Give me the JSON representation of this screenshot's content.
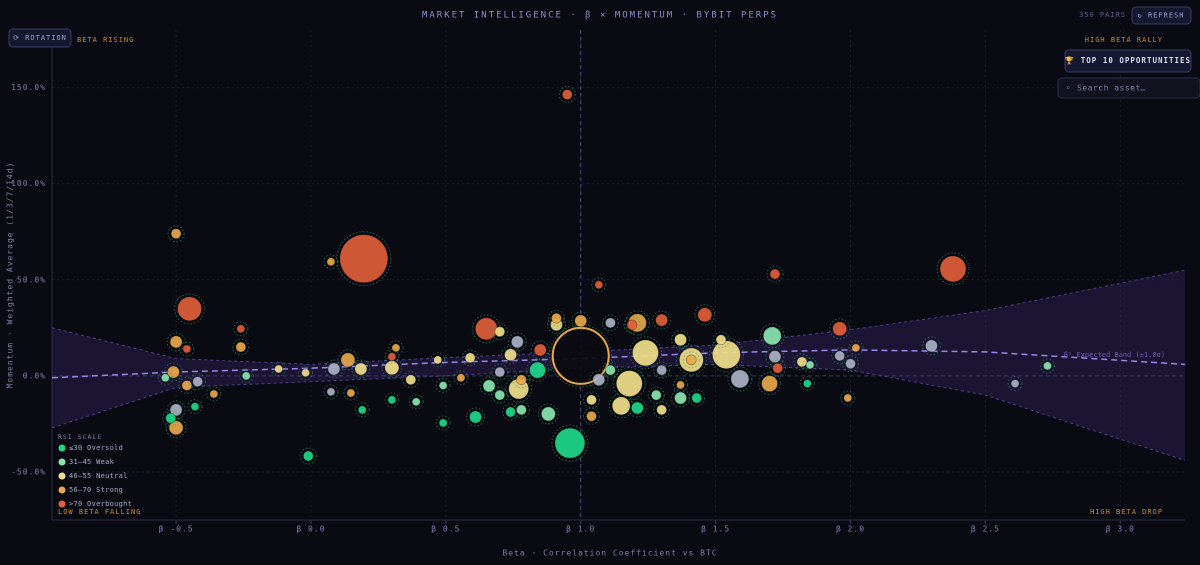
{
  "ui": {
    "rotation": "⟳ ROTATION",
    "pairs": "350 PAIRS",
    "refresh": "↻ REFRESH",
    "top10": "🏆 TOP 10 OPPORTUNITIES",
    "search": "Search asset…"
  },
  "chart_data": {
    "type": "scatter",
    "title": "MARKET INTELLIGENCE · β × MOMENTUM · BYBIT PERPS",
    "x_label": "Beta · Correlation Coefficient vs BTC",
    "y_label": "Momentum · Weighted Average (1/3/7/14d)",
    "quadrants": {
      "top_left": "BETA RISING",
      "top_right": "HIGH BETA RALLY",
      "bottom_left": "LOW BETA FALLING",
      "bottom_right": "HIGH BETA DROP"
    },
    "legend_title": "RSI SCALE",
    "band_label": "β² Expected Band (±1.0σ)",
    "xlim": [
      -0.96,
      3.24
    ],
    "ylim": [
      -75,
      180
    ],
    "grid": true,
    "xticks": [
      {
        "value": -0.5,
        "label": "β -0.5"
      },
      {
        "value": 0,
        "label": "β 0.0"
      },
      {
        "value": 0.5,
        "label": "β 0.5"
      },
      {
        "value": 1,
        "label": "β 1.0"
      },
      {
        "value": 1.5,
        "label": "β 1.5"
      },
      {
        "value": 2,
        "label": "β 2.0"
      },
      {
        "value": 2.5,
        "label": "β 2.5"
      },
      {
        "value": 3,
        "label": "β 3.0"
      }
    ],
    "yticks": [
      {
        "value": -50,
        "label": "-50.0%"
      },
      {
        "value": 0,
        "label": "0.0%"
      },
      {
        "value": 50,
        "label": "50.0%"
      },
      {
        "value": 100,
        "label": "100.0%"
      },
      {
        "value": 150,
        "label": "150.0%"
      }
    ],
    "band": {
      "x": [
        -0.96,
        -0.5,
        0,
        0.5,
        1,
        1.5,
        2,
        2.5,
        3.24
      ],
      "center": [
        -1,
        2,
        4,
        7,
        9,
        12,
        13.5,
        12.5,
        6
      ],
      "upper": [
        25,
        9,
        6,
        9.5,
        12.5,
        16,
        24,
        34,
        55
      ],
      "lower": [
        -27,
        -6,
        -3,
        0,
        4,
        6,
        3,
        -10,
        -44
      ]
    },
    "series": [
      {
        "name": "≤30 Oversold",
        "color": "#1ed98a",
        "x": [
          0.96,
          -0.01,
          0.61,
          -0.52,
          -0.43,
          0.19,
          0.49,
          1.84,
          0.84,
          1.21,
          1.43,
          0.3,
          0.74
        ],
        "values": [
          -35,
          -41.7,
          -21.4,
          -22,
          -16,
          -17.7,
          -24.5,
          -4,
          3,
          -16.7,
          -11.5,
          -12.5,
          -18.8
        ],
        "sizes": [
          15,
          5,
          6,
          5,
          4,
          4,
          4,
          4,
          8,
          6,
          5,
          4,
          5
        ]
      },
      {
        "name": "31–45 Weak",
        "color": "#8ae6b0",
        "x": [
          1.71,
          -0.24,
          0.49,
          0.39,
          0.88,
          0.7,
          1.28,
          1.37,
          0.78,
          2.73,
          1.85,
          -0.54,
          0.66,
          1.11
        ],
        "values": [
          20.8,
          0,
          -5,
          -13.5,
          -19.8,
          -10,
          -10,
          -11.5,
          -17.7,
          5.2,
          5.7,
          -1,
          -5.2,
          3
        ],
        "sizes": [
          9,
          4,
          4,
          4,
          7,
          5,
          5,
          6,
          5,
          4,
          4,
          4,
          6,
          5
        ]
      },
      {
        "name": "46–55 Neutral",
        "color": "#f0e08a",
        "x": [
          1.24,
          1.18,
          1.54,
          1.41,
          0.77,
          1.15,
          0.3,
          0.185,
          -0.12,
          1.82,
          0.74,
          0.59,
          0.47,
          0.91,
          1.04,
          1.37,
          -0.02,
          0.37,
          0.7,
          1.3,
          1.52
        ],
        "values": [
          12,
          -4,
          11,
          8.3,
          -6.8,
          -15.6,
          4.2,
          3.6,
          3.6,
          7.3,
          11,
          9.4,
          8.3,
          26.6,
          -12.5,
          18.8,
          1.6,
          -2,
          23,
          -17.7,
          18.8
        ],
        "sizes": [
          13,
          13,
          14,
          12,
          10,
          9,
          7,
          6,
          4,
          5,
          6,
          5,
          4,
          6,
          5,
          6,
          4,
          5,
          5,
          5,
          5
        ]
      },
      {
        "name": "56–70 Strong",
        "color": "#e8a94a",
        "x": [
          -0.5,
          0.074,
          -0.5,
          -0.26,
          -0.5,
          -0.51,
          -0.46,
          -0.36,
          0.137,
          1.21,
          1.0,
          1.7,
          2.02,
          1.99,
          0.148,
          0.91,
          1.04,
          1.41,
          0.315,
          0.556,
          0.78,
          1.37
        ],
        "values": [
          74,
          59.4,
          17.7,
          15,
          -27,
          2,
          -5,
          -9.4,
          8.3,
          27.6,
          28.6,
          -4,
          14.6,
          -11.5,
          -8.9,
          30,
          -21,
          8.3,
          14.6,
          -1,
          -2,
          -4.7
        ],
        "sizes": [
          5,
          4,
          6,
          5,
          7,
          6,
          5,
          4,
          7,
          9,
          6,
          8,
          4,
          4,
          4,
          5,
          5,
          5,
          4,
          4,
          5,
          4
        ]
      },
      {
        "name": ">70 Overbought",
        "color": "#e0603a",
        "x": [
          0.95,
          0.196,
          -0.45,
          2.38,
          1.067,
          1.72,
          0.65,
          1.96,
          1.46,
          -0.26,
          -0.46,
          1.73,
          1.3,
          1.19,
          0.3,
          0.85
        ],
        "values": [
          146.4,
          61,
          34.9,
          55.7,
          47.4,
          53,
          24.5,
          24.5,
          31.8,
          24.5,
          14,
          4,
          29,
          26.5,
          10,
          13.5
        ],
        "sizes": [
          5,
          24,
          12,
          13,
          4,
          5,
          11,
          7,
          7,
          4,
          4,
          5,
          6,
          5,
          4,
          6
        ]
      },
      {
        "color": "#aab2c4",
        "x": [
          2.3,
          2.61,
          1.59,
          1.72,
          1.96,
          2.0,
          -0.42,
          -0.5,
          0.085,
          0.074,
          0.765,
          1.067,
          1.11,
          0.7,
          1.3
        ],
        "values": [
          15.6,
          -4,
          -1.6,
          10,
          10.4,
          6.3,
          -3,
          -17.7,
          3.6,
          -8.3,
          17.7,
          -2,
          27.6,
          2,
          3
        ],
        "sizes": [
          6,
          4,
          9,
          6,
          5,
          5,
          5,
          6,
          6,
          4,
          6,
          6,
          5,
          5,
          5
        ]
      },
      {
        "color": "#0b0b10",
        "stroke": "#e8a94a",
        "x": [
          1.0
        ],
        "values": [
          10.4
        ],
        "sizes": [
          28
        ]
      }
    ]
  }
}
